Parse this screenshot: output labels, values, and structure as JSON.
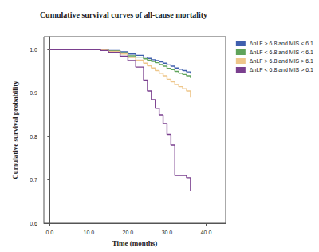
{
  "chart_data": {
    "type": "line",
    "line_style": "step",
    "title": "Cumulative survival curves of all-cause mortality",
    "x_label": "Time (months)",
    "y_label": "Cumulative survival probability",
    "x": [
      0,
      10,
      13,
      15,
      18,
      20,
      22,
      24,
      25,
      26,
      27,
      28,
      29,
      30,
      31,
      32,
      33,
      34,
      35,
      36
    ],
    "series": [
      {
        "name": "ΔnLF > 6.8 and MIS < 6.1",
        "color": "#3f5fae",
        "values": [
          1,
          1,
          1,
          0.998,
          0.995,
          0.99,
          0.987,
          0.983,
          0.98,
          0.977,
          0.975,
          0.972,
          0.969,
          0.965,
          0.962,
          0.958,
          0.955,
          0.952,
          0.949,
          0.945
        ]
      },
      {
        "name": "ΔnLF < 6.8 and MIS < 6.1",
        "color": "#5fa35a",
        "values": [
          1,
          1,
          0.999,
          0.997,
          0.993,
          0.986,
          0.983,
          0.979,
          0.976,
          0.973,
          0.97,
          0.966,
          0.962,
          0.957,
          0.954,
          0.95,
          0.946,
          0.943,
          0.94,
          0.935
        ]
      },
      {
        "name": "ΔnLF > 6.8 and MIS > 6.1",
        "color": "#eec68a",
        "values": [
          1,
          1,
          0.999,
          0.996,
          0.99,
          0.982,
          0.976,
          0.969,
          0.963,
          0.958,
          0.952,
          0.946,
          0.94,
          0.932,
          0.926,
          0.92,
          0.915,
          0.91,
          0.905,
          0.89
        ]
      },
      {
        "name": "ΔnLF < 6.8 and MIS > 6.1",
        "color": "#7a3f8e",
        "values": [
          1,
          1,
          0.998,
          0.994,
          0.985,
          0.975,
          0.96,
          0.93,
          0.905,
          0.885,
          0.865,
          0.85,
          0.83,
          0.805,
          0.78,
          0.71,
          0.71,
          0.71,
          0.705,
          0.675
        ]
      }
    ],
    "xlim": [
      -1.5,
      45
    ],
    "xticks": [
      {
        "value": 0,
        "label": "0.0"
      },
      {
        "value": 10,
        "label": "10.0"
      },
      {
        "value": 20,
        "label": "20.0"
      },
      {
        "value": 30,
        "label": "30.0"
      },
      {
        "value": 40,
        "label": "40.0"
      }
    ],
    "ylim": [
      0.6,
      1.03
    ],
    "yticks": [
      0.6,
      0.7,
      0.8,
      0.9,
      {
        "value": 1,
        "label": "1.0"
      }
    ],
    "grid": false,
    "legend": "right"
  }
}
